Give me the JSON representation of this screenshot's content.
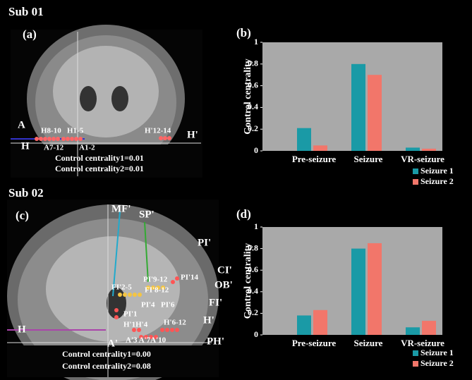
{
  "figure": {
    "panels": [
      {
        "subject": "Sub 01",
        "label": "(a)",
        "electrodes": [
          "A",
          "H",
          "H8-10",
          "H1-5",
          "A7-12",
          "A1-2",
          "H'12-14",
          "H'"
        ],
        "notes": [
          "Control centrality1=0.01",
          "Control centrality2=0.01"
        ]
      },
      {
        "subject": "Sub 02",
        "label": "(c)",
        "electrodes": [
          "MF'",
          "SP'",
          "PI'",
          "CI'",
          "OB'",
          "FI'",
          "H'",
          "PH'",
          "H",
          "A'",
          "PI'14",
          "PI'9-12",
          "FI'8-12",
          "FI'2-5",
          "PI'4",
          "PI'6",
          "PI'1",
          "H'1H'4",
          "H'6-12",
          "A'3 A'7A'10"
        ],
        "notes": [
          "Control centrality1=0.00",
          "Control centrality2=0.08"
        ]
      }
    ]
  },
  "chart_data": [
    {
      "type": "bar",
      "title": "(b)",
      "y_label": "Control centrality",
      "categories": [
        "Pre-seizure",
        "Seizure",
        "VR-seizure"
      ],
      "series": [
        {
          "name": "Seizure 1",
          "color": "#1a9aa6",
          "values": [
            0.21,
            0.8,
            0.03
          ]
        },
        {
          "name": "Seizure 2",
          "color": "#f2766a",
          "values": [
            0.05,
            0.7,
            0.02
          ]
        }
      ],
      "ylim": [
        0,
        1
      ],
      "yticks": [
        0,
        0.2,
        0.4,
        0.6,
        0.8,
        1
      ],
      "background": "#a9a9a9"
    },
    {
      "type": "bar",
      "title": "(d)",
      "y_label": "Control centrality",
      "categories": [
        "Pre-seizure",
        "Seizure",
        "VR-seizure"
      ],
      "series": [
        {
          "name": "Seizure 1",
          "color": "#1a9aa6",
          "values": [
            0.18,
            0.8,
            0.07
          ]
        },
        {
          "name": "Seizure 2",
          "color": "#f2766a",
          "values": [
            0.23,
            0.85,
            0.13
          ]
        }
      ],
      "ylim": [
        0,
        1
      ],
      "yticks": [
        0,
        0.2,
        0.4,
        0.6,
        0.8,
        1
      ],
      "background": "#a9a9a9"
    }
  ]
}
